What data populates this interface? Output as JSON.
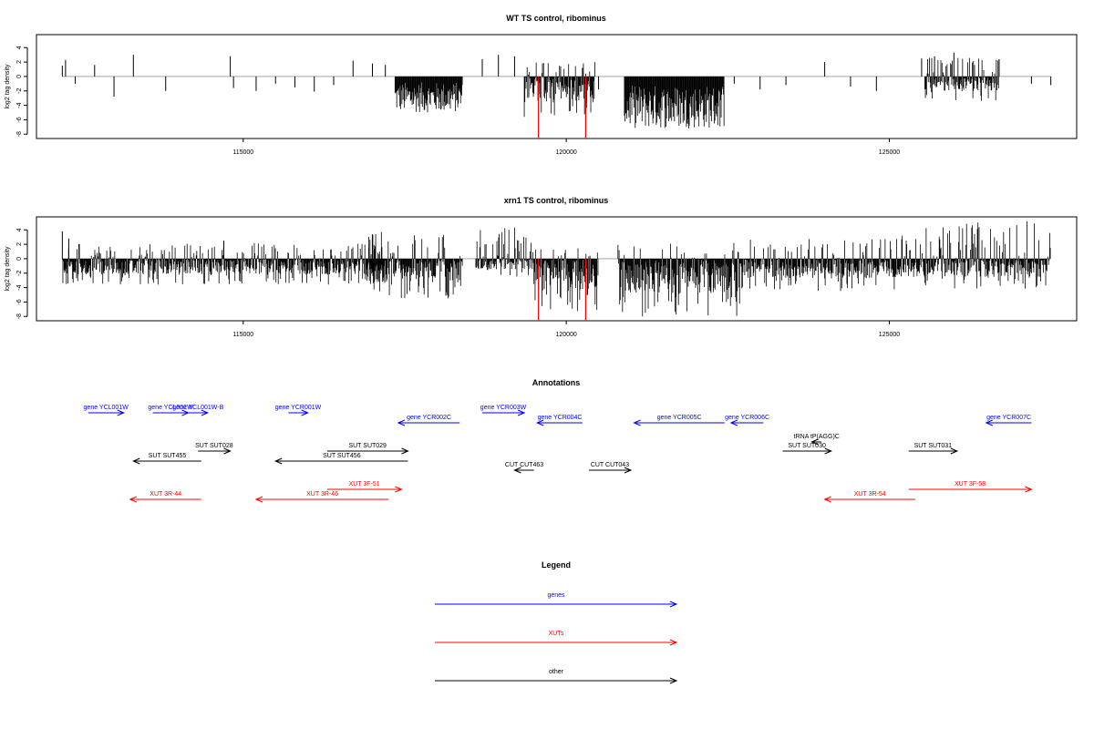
{
  "chart_data": [
    {
      "type": "bar",
      "title": "WT TS control, ribominus",
      "xlabel": "",
      "ylabel": "log2 tag density",
      "xlim": [
        111800,
        127900
      ],
      "ylim": [
        -8.6,
        5.8
      ],
      "x_ticks": [
        115000,
        120000,
        125000
      ],
      "x_tick_labels": [
        "115000",
        "120000",
        "125000"
      ],
      "y_ticks": [
        -8,
        -6,
        -4,
        -2,
        0,
        2,
        4
      ],
      "y_tick_labels": [
        "-8",
        "-6",
        "-4",
        "-2",
        "0",
        "2",
        "4"
      ],
      "baseline": 0,
      "grid": false,
      "highlight_bars": [
        {
          "x": 119570,
          "value": -8.5,
          "color": "#ff0000"
        },
        {
          "x": 120300,
          "value": -8.5,
          "color": "#ff0000"
        }
      ],
      "sparse_bars": [
        {
          "x": 112200,
          "value": 1.5
        },
        {
          "x": 112250,
          "value": 2.3
        },
        {
          "x": 112400,
          "value": -1.0
        },
        {
          "x": 112700,
          "value": 1.6
        },
        {
          "x": 113000,
          "value": -2.8
        },
        {
          "x": 113300,
          "value": 3.0
        },
        {
          "x": 113800,
          "value": -2.0
        },
        {
          "x": 114800,
          "value": 2.8
        },
        {
          "x": 114850,
          "value": -1.6
        },
        {
          "x": 115200,
          "value": -2.0
        },
        {
          "x": 115500,
          "value": -1.0
        },
        {
          "x": 115800,
          "value": -1.5
        },
        {
          "x": 116100,
          "value": -2.1
        },
        {
          "x": 116400,
          "value": -1.2
        },
        {
          "x": 116700,
          "value": 2.2
        },
        {
          "x": 117000,
          "value": 1.8
        },
        {
          "x": 117200,
          "value": 1.6
        },
        {
          "x": 118700,
          "value": 2.4
        },
        {
          "x": 118950,
          "value": 3.0
        },
        {
          "x": 119200,
          "value": 2.8
        },
        {
          "x": 120250,
          "value": 1.2
        },
        {
          "x": 120500,
          "value": -1.8
        },
        {
          "x": 122600,
          "value": -1.0
        },
        {
          "x": 123000,
          "value": -1.8
        },
        {
          "x": 123400,
          "value": -1.2
        },
        {
          "x": 124000,
          "value": 2.0
        },
        {
          "x": 124400,
          "value": -1.4
        },
        {
          "x": 124800,
          "value": -2.0
        },
        {
          "x": 125500,
          "value": 2.5
        },
        {
          "x": 125700,
          "value": 2.8
        },
        {
          "x": 126000,
          "value": 3.3
        },
        {
          "x": 126300,
          "value": -2.0
        },
        {
          "x": 126700,
          "value": 2.4
        },
        {
          "x": 127200,
          "value": -1.0
        },
        {
          "x": 127500,
          "value": -1.2
        }
      ],
      "dense_regions": [
        {
          "x_from": 117350,
          "x_to": 118400,
          "min": -5.0,
          "max": -0.8
        },
        {
          "x_from": 119350,
          "x_to": 120450,
          "min": -5.8,
          "max": 2.0
        },
        {
          "x_from": 120900,
          "x_to": 122450,
          "min": -7.2,
          "max": -1.2
        },
        {
          "x_from": 125550,
          "x_to": 126700,
          "min": -3.5,
          "max": 2.8
        }
      ]
    },
    {
      "type": "bar",
      "title": "xrn1 TS control, ribominus",
      "xlabel": "",
      "ylabel": "log2 tag density",
      "xlim": [
        111800,
        127900
      ],
      "ylim": [
        -8.6,
        5.8
      ],
      "x_ticks": [
        115000,
        120000,
        125000
      ],
      "x_tick_labels": [
        "115000",
        "120000",
        "125000"
      ],
      "y_ticks": [
        -8,
        -6,
        -4,
        -2,
        0,
        2,
        4
      ],
      "y_tick_labels": [
        "-8",
        "-6",
        "-4",
        "-2",
        "0",
        "2",
        "4"
      ],
      "baseline": 0,
      "grid": false,
      "highlight_bars": [
        {
          "x": 119570,
          "value": -8.5,
          "color": "#ff0000"
        },
        {
          "x": 120300,
          "value": -8.5,
          "color": "#ff0000"
        }
      ],
      "sparse_bars": [
        {
          "x": 112200,
          "value": 3.8
        },
        {
          "x": 112300,
          "value": 2.8
        },
        {
          "x": 114700,
          "value": 2.5
        }
      ],
      "dense_regions": [
        {
          "x_from": 112200,
          "x_to": 117200,
          "min": -3.6,
          "max": 2.2
        },
        {
          "x_from": 116900,
          "x_to": 118400,
          "min": -5.5,
          "max": 3.8
        },
        {
          "x_from": 118600,
          "x_to": 119500,
          "min": -2.5,
          "max": 5.0
        },
        {
          "x_from": 119500,
          "x_to": 120500,
          "min": -7.5,
          "max": 1.5
        },
        {
          "x_from": 120800,
          "x_to": 122700,
          "min": -8.0,
          "max": 2.2
        },
        {
          "x_from": 122700,
          "x_to": 125200,
          "min": -4.5,
          "max": 3.0
        },
        {
          "x_from": 125200,
          "x_to": 127500,
          "min": -4.2,
          "max": 5.2
        }
      ]
    }
  ],
  "annotations": {
    "title": "Annotations",
    "features": [
      {
        "label": "gene YCL001W",
        "color": "#0000ff",
        "x_from": 112600,
        "x_to": 113150,
        "direction": "right",
        "row": 1
      },
      {
        "label": "gene YCL002W",
        "color": "#0000ff",
        "x_from": 113600,
        "x_to": 114150,
        "direction": "right",
        "row": 1
      },
      {
        "label": "gene YCL001W-B",
        "color": "#0000ff",
        "x_from": 114150,
        "x_to": 114450,
        "direction": "right",
        "row": 1
      },
      {
        "label": "gene YCR001W",
        "color": "#0000ff",
        "x_from": 115700,
        "x_to": 116000,
        "direction": "right",
        "row": 1
      },
      {
        "label": "gene YCR002C",
        "color": "#0000ff",
        "x_from": 117400,
        "x_to": 118350,
        "direction": "left",
        "row": 2
      },
      {
        "label": "gene YCR003W",
        "color": "#0000ff",
        "x_from": 118700,
        "x_to": 119350,
        "direction": "right",
        "row": 1
      },
      {
        "label": "gene YCR004C",
        "color": "#0000ff",
        "x_from": 119550,
        "x_to": 120250,
        "direction": "left",
        "row": 2
      },
      {
        "label": "gene YCR005C",
        "color": "#0000ff",
        "x_from": 121050,
        "x_to": 122450,
        "direction": "left",
        "row": 2
      },
      {
        "label": "gene YCR006C",
        "color": "#0000ff",
        "x_from": 122550,
        "x_to": 123050,
        "direction": "left",
        "row": 2
      },
      {
        "label": "gene YCR007C",
        "color": "#0000ff",
        "x_from": 126500,
        "x_to": 127200,
        "direction": "left",
        "row": 2
      },
      {
        "label": "tRNA tP(AGG)C",
        "color": "#000000",
        "x_from": 123800,
        "x_to": 123950,
        "direction": "left",
        "row": 3
      },
      {
        "label": "SUT SUT455",
        "color": "#000000",
        "x_from": 113300,
        "x_to": 114350,
        "direction": "left",
        "row": 5
      },
      {
        "label": "SUT SUT028",
        "color": "#000000",
        "x_from": 114300,
        "x_to": 114800,
        "direction": "right",
        "row": 4
      },
      {
        "label": "SUT SUT456",
        "color": "#000000",
        "x_from": 115500,
        "x_to": 117550,
        "direction": "left",
        "row": 5
      },
      {
        "label": "SUT SUT029",
        "color": "#000000",
        "x_from": 116300,
        "x_to": 117550,
        "direction": "right",
        "row": 4
      },
      {
        "label": "CUT CUT463",
        "color": "#000000",
        "x_from": 119200,
        "x_to": 119500,
        "direction": "left",
        "row": 6
      },
      {
        "label": "CUT CUT043",
        "color": "#000000",
        "x_from": 120350,
        "x_to": 121000,
        "direction": "right",
        "row": 6
      },
      {
        "label": "SUT SUT030",
        "color": "#000000",
        "x_from": 123350,
        "x_to": 124100,
        "direction": "right",
        "row": 4
      },
      {
        "label": "SUT SUT031",
        "color": "#000000",
        "x_from": 125300,
        "x_to": 126050,
        "direction": "right",
        "row": 4
      },
      {
        "label": "XUT 3R-44",
        "color": "#ff0000",
        "x_from": 113250,
        "x_to": 114350,
        "direction": "left",
        "row": 8
      },
      {
        "label": "XUT 3R-46",
        "color": "#ff0000",
        "x_from": 115200,
        "x_to": 117250,
        "direction": "left",
        "row": 8
      },
      {
        "label": "XUT 3F-51",
        "color": "#ff0000",
        "x_from": 116300,
        "x_to": 117450,
        "direction": "right",
        "row": 7
      },
      {
        "label": "XUT 3R-54",
        "color": "#ff0000",
        "x_from": 124000,
        "x_to": 125400,
        "direction": "left",
        "row": 8
      },
      {
        "label": "XUT 3F-58",
        "color": "#ff0000",
        "x_from": 125300,
        "x_to": 127200,
        "direction": "right",
        "row": 7
      }
    ]
  },
  "legend": {
    "title": "Legend",
    "items": [
      {
        "label": "genes",
        "color": "#0000ff"
      },
      {
        "label": "XUTs",
        "color": "#ff0000"
      },
      {
        "label": "other",
        "color": "#000000"
      }
    ]
  }
}
